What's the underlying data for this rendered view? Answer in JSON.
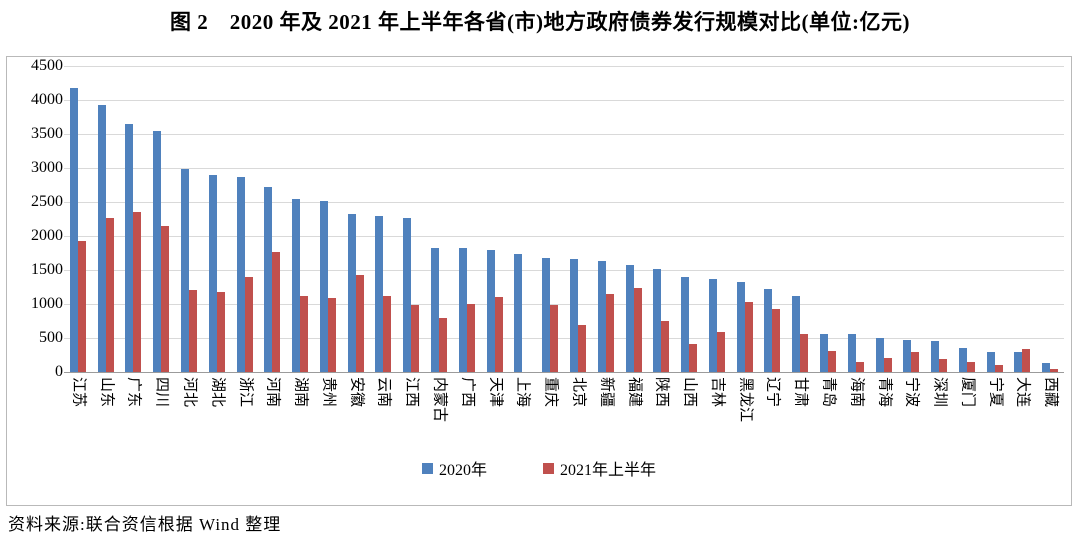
{
  "figure": {
    "title": "图 2　2020 年及 2021 年上半年各省(市)地方政府债券发行规模对比(单位:亿元)",
    "source": "资料来源:联合资信根据 Wind 整理"
  },
  "colors": {
    "series_2020": "#4F81BD",
    "series_2021h1": "#C0504D",
    "gridline": "#d9d9d9",
    "axis_line": "#9b9b9b",
    "frame_border": "#b9b9b9"
  },
  "chart_data": {
    "type": "bar",
    "title": "图 2　2020 年及 2021 年上半年各省(市)地方政府债券发行规模对比(单位:亿元)",
    "xlabel": "",
    "ylabel": "",
    "ylim": [
      0,
      4500
    ],
    "ytick_step": 500,
    "yticks": [
      0,
      500,
      1000,
      1500,
      2000,
      2500,
      3000,
      3500,
      4000,
      4500
    ],
    "grid": true,
    "legend_position": "bottom",
    "categories": [
      "江苏",
      "山东",
      "广东",
      "四川",
      "河北",
      "湖北",
      "浙江",
      "河南",
      "湖南",
      "贵州",
      "安徽",
      "云南",
      "江西",
      "内蒙古",
      "广西",
      "天津",
      "上海",
      "重庆",
      "北京",
      "新疆",
      "福建",
      "陕西",
      "山西",
      "吉林",
      "黑龙江",
      "辽宁",
      "甘肃",
      "青岛",
      "海南",
      "青海",
      "宁波",
      "深圳",
      "厦门",
      "宁夏",
      "大连",
      "西藏"
    ],
    "series": [
      {
        "name": "2020年",
        "color": "#4F81BD",
        "values": [
          4180,
          3930,
          3640,
          3540,
          2990,
          2890,
          2870,
          2720,
          2550,
          2510,
          2330,
          2290,
          2270,
          1830,
          1820,
          1790,
          1740,
          1680,
          1660,
          1630,
          1580,
          1520,
          1390,
          1370,
          1330,
          1220,
          1120,
          560,
          560,
          500,
          470,
          460,
          360,
          300,
          300,
          130
        ]
      },
      {
        "name": "2021年上半年",
        "color": "#C0504D",
        "values": [
          1930,
          2260,
          2350,
          2150,
          1210,
          1170,
          1400,
          1760,
          1120,
          1090,
          1420,
          1120,
          990,
          790,
          1000,
          1110,
          0,
          990,
          690,
          1150,
          1230,
          750,
          410,
          590,
          1030,
          920,
          560,
          310,
          150,
          210,
          300,
          190,
          140,
          100,
          335,
          50
        ]
      }
    ]
  }
}
